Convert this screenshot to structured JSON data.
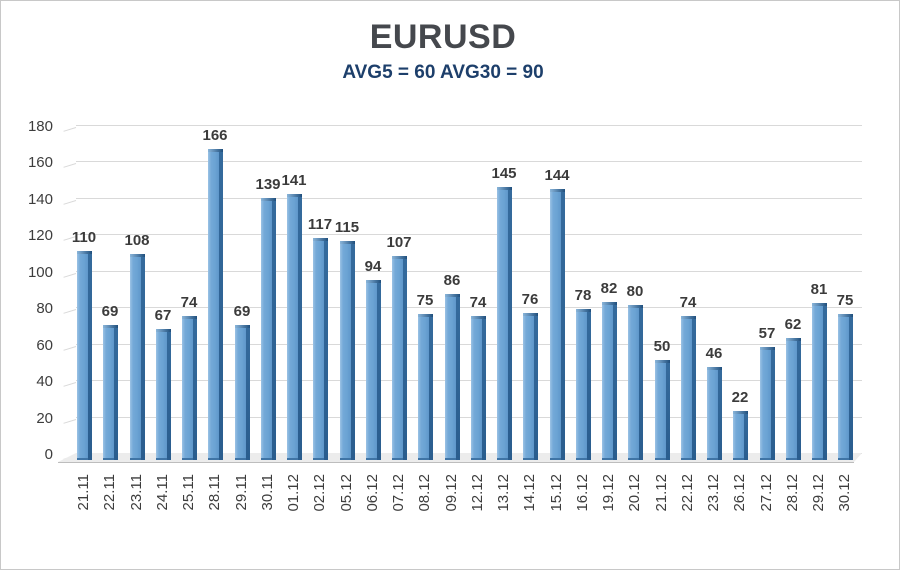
{
  "header": {
    "title": "EURUSD",
    "subtitle": "AVG5 = 60 AVG30 = 90"
  },
  "chart_data": {
    "type": "bar",
    "title": "EURUSD",
    "subtitle": "AVG5 = 60 AVG30 = 90",
    "categories": [
      "21.11",
      "22.11",
      "23.11",
      "24.11",
      "25.11",
      "28.11",
      "29.11",
      "30.11",
      "01.12",
      "02.12",
      "05.12",
      "06.12",
      "07.12",
      "08.12",
      "09.12",
      "12.12",
      "13.12",
      "14.12",
      "15.12",
      "16.12",
      "19.12",
      "20.12",
      "21.12",
      "22.12",
      "23.12",
      "26.12",
      "27.12",
      "28.12",
      "29.12",
      "30.12"
    ],
    "values": [
      110,
      69,
      108,
      67,
      74,
      166,
      69,
      139,
      141,
      117,
      115,
      94,
      107,
      75,
      86,
      74,
      145,
      76,
      144,
      78,
      82,
      80,
      50,
      74,
      46,
      22,
      57,
      62,
      81,
      75
    ],
    "xlabel": "",
    "ylabel": "",
    "ylim": [
      0,
      180
    ],
    "ytick_step": 20,
    "grid": true,
    "legend": "none",
    "data_labels": true,
    "colors": {
      "bar": "#6ba3d3",
      "bar_highlight": "#9cc3e5",
      "bar_shade": "#5f97ca",
      "bar_side": "#2d6191",
      "bar_cap": "#1f4f7d",
      "grid": "#d9d9d9",
      "floor": "#ececec",
      "floor_edge": "#bdbdbd",
      "title": "#45484d",
      "subtitle": "#1d3f6b",
      "data_label": "#3b3b3b",
      "axis_label": "#3d3d3d"
    }
  }
}
